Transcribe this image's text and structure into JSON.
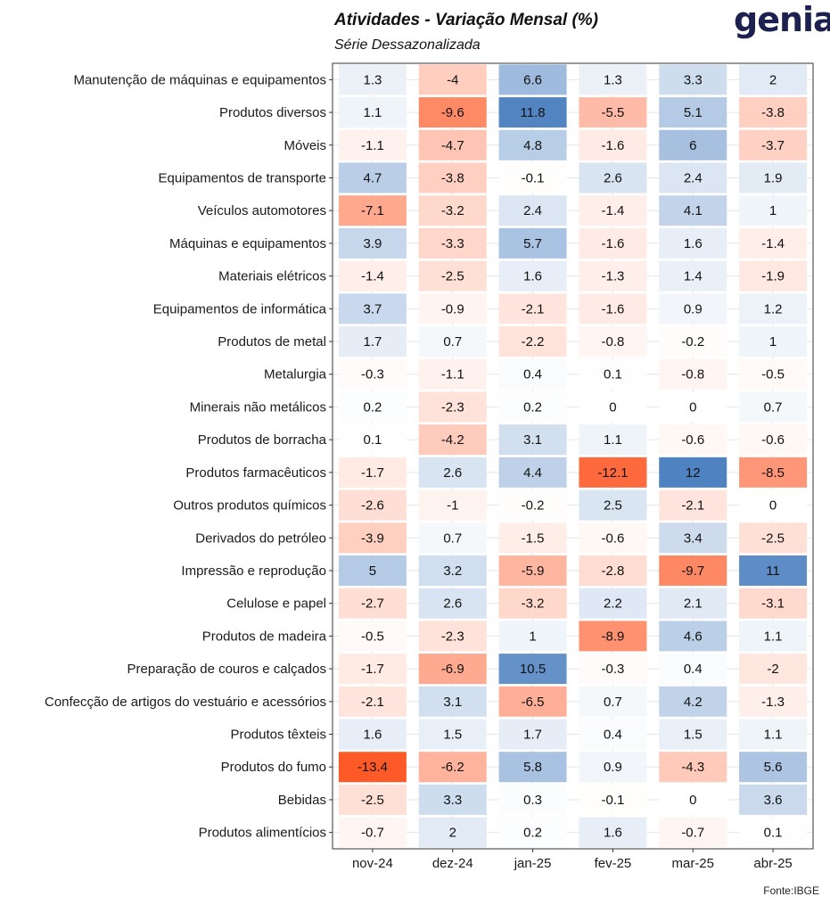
{
  "header": {
    "title": "Atividades - Variação Mensal (%)",
    "subtitle": "Série Dessazonalizada",
    "logo_text": "genial",
    "source": "Fonte:IBGE"
  },
  "colors": {
    "negative_max": "#fe5a28",
    "neutral": "#ffffff",
    "positive_max": "#3a73ba",
    "grid": "#e6e6e6",
    "frame": "#333333"
  },
  "chart_data": {
    "type": "heatmap",
    "title": "Atividades - Variação Mensal (%)",
    "subtitle": "Série Dessazonalizada",
    "columns": [
      "nov-24",
      "dez-24",
      "jan-25",
      "fev-25",
      "mar-25",
      "abr-25"
    ],
    "rows": [
      {
        "label": "Manutenção de máquinas e equipamentos",
        "values": [
          1.3,
          -4,
          6.6,
          1.3,
          3.3,
          2
        ]
      },
      {
        "label": "Produtos diversos",
        "values": [
          1.1,
          -9.6,
          11.8,
          -5.5,
          5.1,
          -3.8
        ]
      },
      {
        "label": "Móveis",
        "values": [
          -1.1,
          -4.7,
          4.8,
          -1.6,
          6,
          -3.7
        ]
      },
      {
        "label": "Equipamentos de transporte",
        "values": [
          4.7,
          -3.8,
          -0.1,
          2.6,
          2.4,
          1.9
        ]
      },
      {
        "label": "Veículos automotores",
        "values": [
          -7.1,
          -3.2,
          2.4,
          -1.4,
          4.1,
          1
        ]
      },
      {
        "label": "Máquinas e equipamentos",
        "values": [
          3.9,
          -3.3,
          5.7,
          -1.6,
          1.6,
          -1.4
        ]
      },
      {
        "label": "Materiais elétricos",
        "values": [
          -1.4,
          -2.5,
          1.6,
          -1.3,
          1.4,
          -1.9
        ]
      },
      {
        "label": "Equipamentos de informática",
        "values": [
          3.7,
          -0.9,
          -2.1,
          -1.6,
          0.9,
          1.2
        ]
      },
      {
        "label": "Produtos de metal",
        "values": [
          1.7,
          0.7,
          -2.2,
          -0.8,
          -0.2,
          1
        ]
      },
      {
        "label": "Metalurgia",
        "values": [
          -0.3,
          -1.1,
          0.4,
          0.1,
          -0.8,
          -0.5
        ]
      },
      {
        "label": "Minerais não metálicos",
        "values": [
          0.2,
          -2.3,
          0.2,
          0,
          0,
          0.7
        ]
      },
      {
        "label": "Produtos de borracha",
        "values": [
          0.1,
          -4.2,
          3.1,
          1.1,
          -0.6,
          -0.6
        ]
      },
      {
        "label": "Produtos farmacêuticos",
        "values": [
          -1.7,
          2.6,
          4.4,
          -12.1,
          12,
          -8.5
        ]
      },
      {
        "label": "Outros produtos químicos",
        "values": [
          -2.6,
          -1,
          -0.2,
          2.5,
          -2.1,
          0
        ]
      },
      {
        "label": "Derivados do petróleo",
        "values": [
          -3.9,
          0.7,
          -1.5,
          -0.6,
          3.4,
          -2.5
        ]
      },
      {
        "label": "Impressão e reprodução",
        "values": [
          5,
          3.2,
          -5.9,
          -2.8,
          -9.7,
          11
        ]
      },
      {
        "label": "Celulose e papel",
        "values": [
          -2.7,
          2.6,
          -3.2,
          2.2,
          2.1,
          -3.1
        ]
      },
      {
        "label": "Produtos de madeira",
        "values": [
          -0.5,
          -2.3,
          1,
          -8.9,
          4.6,
          1.1
        ]
      },
      {
        "label": "Preparação de couros e calçados",
        "values": [
          -1.7,
          -6.9,
          10.5,
          -0.3,
          0.4,
          -2
        ]
      },
      {
        "label": "Confecção de artigos do vestuário e acessórios",
        "values": [
          -2.1,
          3.1,
          -6.5,
          0.7,
          4.2,
          -1.3
        ]
      },
      {
        "label": "Produtos têxteis",
        "values": [
          1.6,
          1.5,
          1.7,
          0.4,
          1.5,
          1.1
        ]
      },
      {
        "label": "Produtos do fumo",
        "values": [
          -13.4,
          -6.2,
          5.8,
          0.9,
          -4.3,
          5.6
        ]
      },
      {
        "label": "Bebidas",
        "values": [
          -2.5,
          3.3,
          0.3,
          -0.1,
          0,
          3.6
        ]
      },
      {
        "label": "Produtos alimentícios",
        "values": [
          -0.7,
          2,
          0.2,
          1.6,
          -0.7,
          0.1
        ]
      }
    ],
    "grid": true,
    "legend": "none"
  }
}
